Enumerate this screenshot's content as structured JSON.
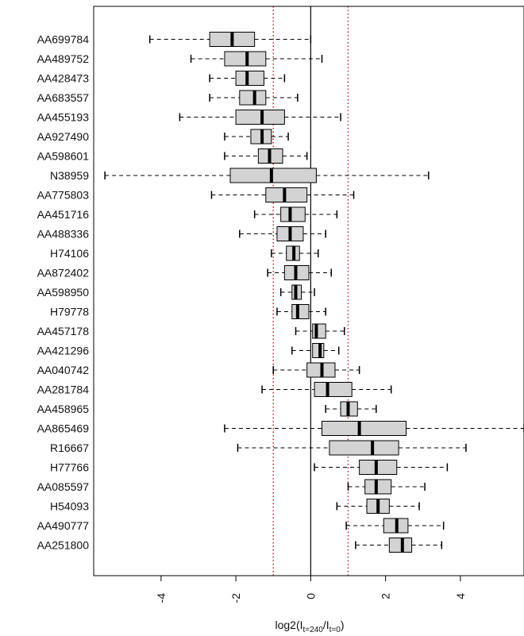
{
  "chart_data": {
    "type": "boxplot",
    "orientation": "horizontal",
    "title": "",
    "xlabel": "log2(I_t=240/I_t=0)",
    "xlabel_parts": {
      "prefix": "log2(I",
      "sub1": "t=240",
      "mid": "/I",
      "sub2": "t=0",
      "suffix": ")"
    },
    "ylabel": "",
    "xlim": [
      -5.8,
      5.7
    ],
    "xticks": [
      -4,
      -2,
      0,
      2,
      4
    ],
    "xtick_labels": [
      "-4",
      "-2",
      "0",
      "2",
      "4"
    ],
    "reference_lines": [
      {
        "x": 0,
        "style": "solid",
        "color": "#000000"
      },
      {
        "x": -1,
        "style": "dotted",
        "color": "#cc2222"
      },
      {
        "x": 1,
        "style": "dotted",
        "color": "#cc2222"
      }
    ],
    "box_fill": "#d3d3d3",
    "genes": [
      {
        "name": "AA699784",
        "min": -4.3,
        "q1": -2.7,
        "median": -2.1,
        "q3": -1.5,
        "max": 0.0
      },
      {
        "name": "AA489752",
        "min": -3.2,
        "q1": -2.3,
        "median": -1.7,
        "q3": -1.2,
        "max": 0.3
      },
      {
        "name": "AA428473",
        "min": -2.7,
        "q1": -2.0,
        "median": -1.7,
        "q3": -1.25,
        "max": -0.7
      },
      {
        "name": "AA683557",
        "min": -2.7,
        "q1": -1.9,
        "median": -1.5,
        "q3": -1.2,
        "max": -0.35
      },
      {
        "name": "AA455193",
        "min": -3.5,
        "q1": -2.0,
        "median": -1.3,
        "q3": -0.7,
        "max": 0.8
      },
      {
        "name": "AA927490",
        "min": -2.3,
        "q1": -1.6,
        "median": -1.3,
        "q3": -1.05,
        "max": -0.6
      },
      {
        "name": "AA598601",
        "min": -2.3,
        "q1": -1.4,
        "median": -1.1,
        "q3": -0.75,
        "max": -0.1
      },
      {
        "name": "N38959",
        "min": -5.5,
        "q1": -2.15,
        "median": -1.05,
        "q3": 0.15,
        "max": 3.15
      },
      {
        "name": "AA775803",
        "min": -2.65,
        "q1": -1.2,
        "median": -0.7,
        "q3": -0.1,
        "max": 1.15
      },
      {
        "name": "AA451716",
        "min": -1.5,
        "q1": -0.8,
        "median": -0.55,
        "q3": -0.15,
        "max": 0.7
      },
      {
        "name": "AA488336",
        "min": -1.9,
        "q1": -0.9,
        "median": -0.55,
        "q3": -0.2,
        "max": 0.4
      },
      {
        "name": "H74106",
        "min": -1.05,
        "q1": -0.65,
        "median": -0.45,
        "q3": -0.3,
        "max": 0.2
      },
      {
        "name": "AA872402",
        "min": -1.15,
        "q1": -0.7,
        "median": -0.4,
        "q3": -0.05,
        "max": 0.55
      },
      {
        "name": "AA598950",
        "min": -0.8,
        "q1": -0.5,
        "median": -0.4,
        "q3": -0.25,
        "max": 0.1
      },
      {
        "name": "H79778",
        "min": -0.9,
        "q1": -0.5,
        "median": -0.35,
        "q3": -0.05,
        "max": 0.4
      },
      {
        "name": "AA457178",
        "min": -0.4,
        "q1": 0.05,
        "median": 0.15,
        "q3": 0.4,
        "max": 0.9
      },
      {
        "name": "AA421296",
        "min": -0.5,
        "q1": 0.05,
        "median": 0.25,
        "q3": 0.35,
        "max": 0.75
      },
      {
        "name": "AA040742",
        "min": -1.0,
        "q1": -0.1,
        "median": 0.3,
        "q3": 0.65,
        "max": 1.3
      },
      {
        "name": "AA281784",
        "min": -1.3,
        "q1": 0.1,
        "median": 0.45,
        "q3": 1.1,
        "max": 2.15
      },
      {
        "name": "AA458965",
        "min": 0.4,
        "q1": 0.8,
        "median": 1.0,
        "q3": 1.25,
        "max": 1.75
      },
      {
        "name": "AA865469",
        "min": -2.3,
        "q1": 0.3,
        "median": 1.3,
        "q3": 2.55,
        "max": 5.7
      },
      {
        "name": "R16667",
        "min": -1.95,
        "q1": 0.5,
        "median": 1.65,
        "q3": 2.35,
        "max": 4.15
      },
      {
        "name": "H77766",
        "min": 0.1,
        "q1": 1.3,
        "median": 1.75,
        "q3": 2.3,
        "max": 3.65
      },
      {
        "name": "AA085597",
        "min": 1.0,
        "q1": 1.45,
        "median": 1.75,
        "q3": 2.15,
        "max": 3.05
      },
      {
        "name": "H54093",
        "min": 0.7,
        "q1": 1.5,
        "median": 1.8,
        "q3": 2.1,
        "max": 2.9
      },
      {
        "name": "AA490777",
        "min": 0.95,
        "q1": 1.95,
        "median": 2.3,
        "q3": 2.6,
        "max": 3.55
      },
      {
        "name": "AA251800",
        "min": 1.2,
        "q1": 2.1,
        "median": 2.45,
        "q3": 2.7,
        "max": 3.5
      }
    ]
  }
}
